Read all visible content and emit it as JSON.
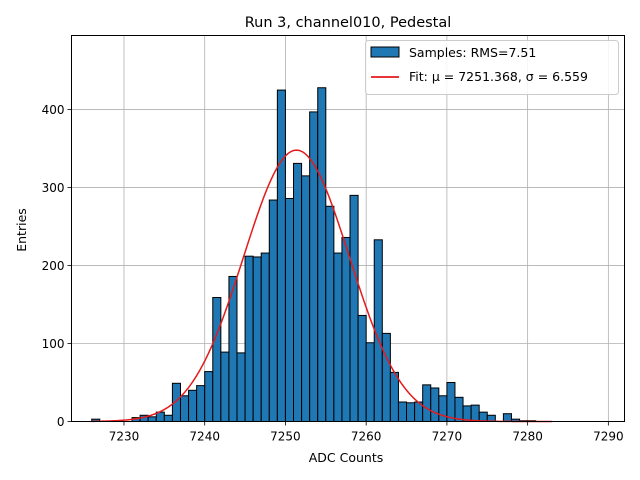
{
  "chart_data": {
    "type": "bar",
    "title": "Run 3, channel010, Pedestal",
    "xlabel": "ADC Counts",
    "ylabel": "Entries",
    "xlim": [
      7223.5,
      7292
    ],
    "ylim": [
      0,
      495
    ],
    "xticks": [
      7230,
      7240,
      7250,
      7260,
      7270,
      7280,
      7290
    ],
    "yticks": [
      0,
      100,
      200,
      300,
      400
    ],
    "grid": true,
    "legend_position": "top-right",
    "colors": {
      "bar": "#1f77b4",
      "fit": "#e41a1c",
      "edge": "#000000",
      "grid": "#b0b0b0"
    },
    "series": [
      {
        "name": "Samples: RMS=7.51",
        "kind": "histogram",
        "bin_width": 1,
        "bin_start": 7226,
        "counts": [
          3,
          0,
          0,
          0,
          0,
          5,
          8,
          6,
          12,
          8,
          49,
          33,
          40,
          46,
          64,
          159,
          89,
          186,
          88,
          212,
          211,
          216,
          284,
          425,
          286,
          331,
          315,
          397,
          428,
          276,
          216,
          236,
          290,
          136,
          101,
          233,
          113,
          63,
          25,
          24,
          25,
          47,
          43,
          33,
          50,
          31,
          20,
          21,
          12,
          8,
          0,
          10,
          3,
          1,
          1,
          0,
          0,
          0
        ]
      },
      {
        "name": "Fit: μ = 7251.368, σ = 6.559",
        "kind": "gaussian",
        "mu": 7251.368,
        "sigma": 6.559,
        "amplitude": 348,
        "x_range": [
          7226,
          7283
        ]
      }
    ]
  }
}
